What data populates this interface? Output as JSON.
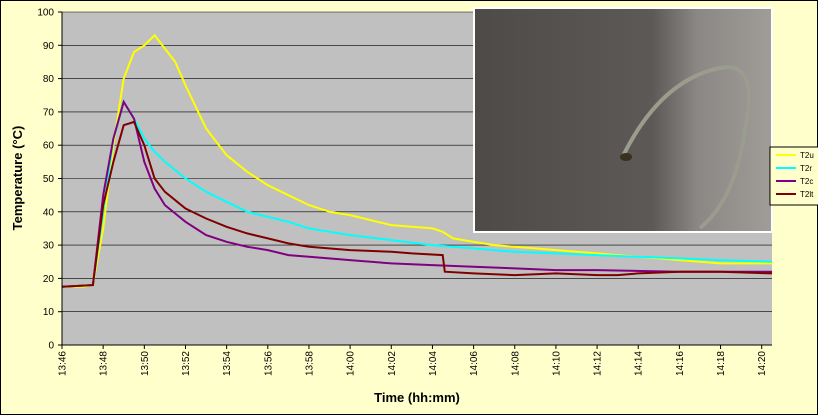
{
  "chart_data": {
    "type": "line",
    "xlabel": "Time (hh:mm)",
    "ylabel": "Temperature (°C)",
    "ylim": [
      0,
      100
    ],
    "yticks": [
      0,
      10,
      20,
      30,
      40,
      50,
      60,
      70,
      80,
      90,
      100
    ],
    "xlim": [
      826,
      860.5
    ],
    "xticks": [
      {
        "value": 826,
        "label": "13:46"
      },
      {
        "value": 828,
        "label": "13:48"
      },
      {
        "value": 830,
        "label": "13:50"
      },
      {
        "value": 832,
        "label": "13:52"
      },
      {
        "value": 834,
        "label": "13:54"
      },
      {
        "value": 836,
        "label": "13:56"
      },
      {
        "value": 838,
        "label": "13:58"
      },
      {
        "value": 840,
        "label": "14:00"
      },
      {
        "value": 842,
        "label": "14:02"
      },
      {
        "value": 844,
        "label": "14:04"
      },
      {
        "value": 846,
        "label": "14:06"
      },
      {
        "value": 848,
        "label": "14:08"
      },
      {
        "value": 850,
        "label": "14:10"
      },
      {
        "value": 852,
        "label": "14:12"
      },
      {
        "value": 854,
        "label": "14:14"
      },
      {
        "value": 856,
        "label": "14:16"
      },
      {
        "value": 858,
        "label": "14:18"
      },
      {
        "value": 860,
        "label": "14:20"
      }
    ],
    "grid": true,
    "legend": "right",
    "series": [
      {
        "name": "T2u",
        "color": "#ffff00",
        "x": [
          826,
          827,
          827.5,
          828,
          828.5,
          829,
          829.5,
          830,
          830.5,
          831,
          831.5,
          832,
          833,
          834,
          835,
          836,
          837,
          838,
          839,
          840,
          841,
          842,
          843,
          844,
          844.5,
          845,
          846,
          847,
          848,
          849,
          850,
          851,
          852,
          853,
          854,
          855,
          856,
          857,
          858,
          859,
          860.5
        ],
        "values": [
          17.5,
          17.5,
          18,
          35,
          60,
          80,
          88,
          90,
          93,
          89,
          85,
          78,
          65,
          57,
          52,
          48,
          45,
          42,
          40,
          39,
          37.5,
          36,
          35.5,
          35,
          34,
          32,
          31,
          30,
          29.5,
          29,
          28.5,
          28,
          27.5,
          27,
          26.5,
          26,
          25.5,
          25,
          24.5,
          24.5,
          24.5
        ]
      },
      {
        "name": "T2r",
        "color": "#00ffff",
        "x": [
          826,
          827.5,
          828,
          828.5,
          829,
          829.5,
          830,
          830.5,
          831,
          832,
          833,
          834,
          835,
          836,
          837,
          838,
          839,
          840,
          842,
          844,
          846,
          848,
          850,
          852,
          854,
          856,
          858,
          860.5
        ],
        "values": [
          17.5,
          18,
          40,
          62,
          73,
          68,
          62,
          58,
          55,
          50,
          46,
          43,
          40,
          38.5,
          37,
          35,
          34,
          33,
          31.5,
          30,
          29,
          28,
          27.5,
          27,
          26.5,
          26,
          25.5,
          25
        ]
      },
      {
        "name": "T2c",
        "color": "#800080",
        "x": [
          826,
          827.5,
          828,
          828.5,
          829,
          829.5,
          830,
          830.5,
          831,
          832,
          833,
          834,
          835,
          836,
          837,
          838,
          840,
          842,
          844,
          846,
          848,
          850,
          852,
          856,
          860.5
        ],
        "values": [
          17.5,
          18,
          45,
          62,
          73,
          68,
          55,
          47,
          42,
          37,
          33,
          31,
          29.5,
          28.5,
          27,
          26.5,
          25.5,
          24.5,
          24,
          23.5,
          23,
          22.5,
          22.5,
          22,
          22
        ]
      },
      {
        "name": "T2lt",
        "color": "#800000",
        "x": [
          826,
          827.5,
          828,
          828.5,
          829,
          829.5,
          830,
          830.5,
          831,
          832,
          833,
          834,
          835,
          836,
          837,
          838,
          840,
          842,
          843,
          844.5,
          844.6,
          846,
          848,
          850,
          852,
          853,
          854,
          856,
          858,
          860.5
        ],
        "values": [
          17.5,
          18,
          42,
          55,
          66,
          67,
          60,
          50,
          46,
          41,
          38,
          35.5,
          33.5,
          32,
          30.5,
          29.5,
          28.5,
          28,
          27.5,
          27,
          22,
          21.5,
          21,
          21.5,
          21,
          21,
          21.5,
          22,
          22,
          21.5
        ]
      }
    ]
  }
}
